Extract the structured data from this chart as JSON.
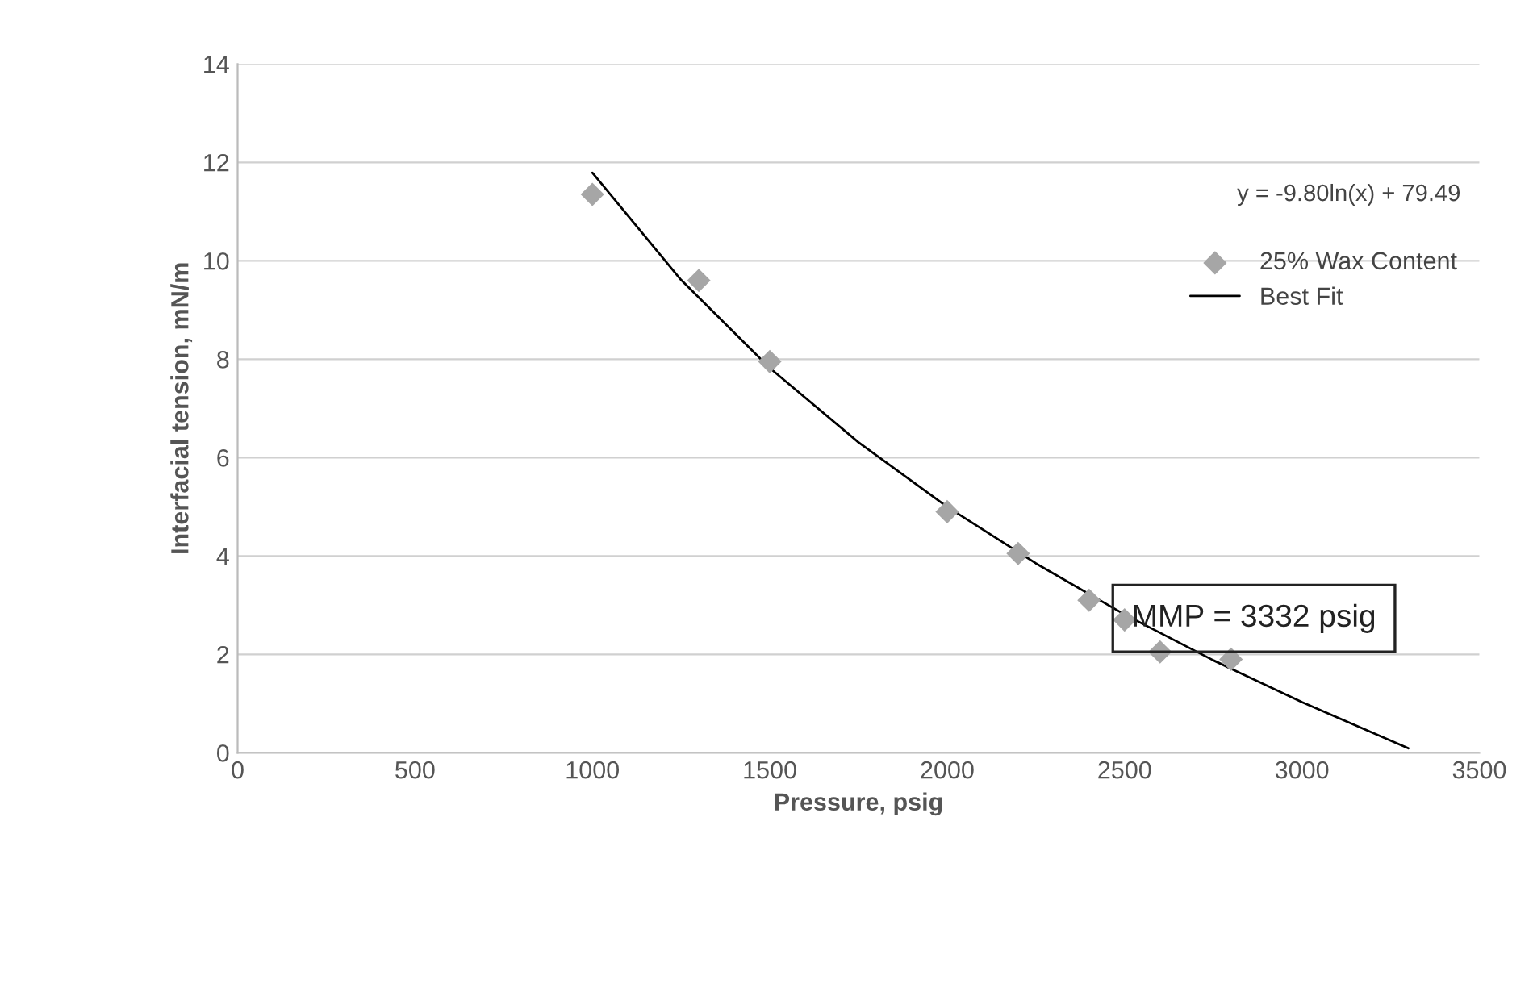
{
  "chart_data": {
    "type": "scatter",
    "xlabel": "Pressure, psig",
    "ylabel": "Interfacial tension, mN/m",
    "xlim": [
      0,
      3500
    ],
    "xticks": [
      0,
      500,
      1000,
      1500,
      2000,
      2500,
      3000,
      3500
    ],
    "ylim": [
      0,
      14
    ],
    "yticks": [
      0,
      2,
      4,
      6,
      8,
      10,
      12,
      14
    ],
    "grid": "y",
    "legend": "right",
    "series": [
      {
        "name": "25% Wax Content",
        "marker": "diamond",
        "color": "#a6a6a6",
        "x": [
          1000,
          1300,
          1500,
          2000,
          2200,
          2400,
          2500,
          2600,
          2800
        ],
        "values": [
          11.35,
          9.6,
          7.95,
          4.9,
          4.05,
          3.1,
          2.7,
          2.05,
          1.9
        ]
      },
      {
        "name": "Best Fit",
        "type": "line",
        "marker": "none",
        "line_style": "solid",
        "color": "#000000",
        "x": [
          1000,
          1250,
          1500,
          1750,
          2000,
          2250,
          2500,
          2750,
          3000,
          3300
        ],
        "values": [
          11.79,
          9.61,
          7.82,
          6.31,
          5.0,
          3.85,
          2.81,
          1.88,
          1.03,
          0.09
        ]
      }
    ],
    "annotations": [
      "y = -9.80ln(x) + 79.49",
      "MMP = 3332 psig"
    ]
  }
}
